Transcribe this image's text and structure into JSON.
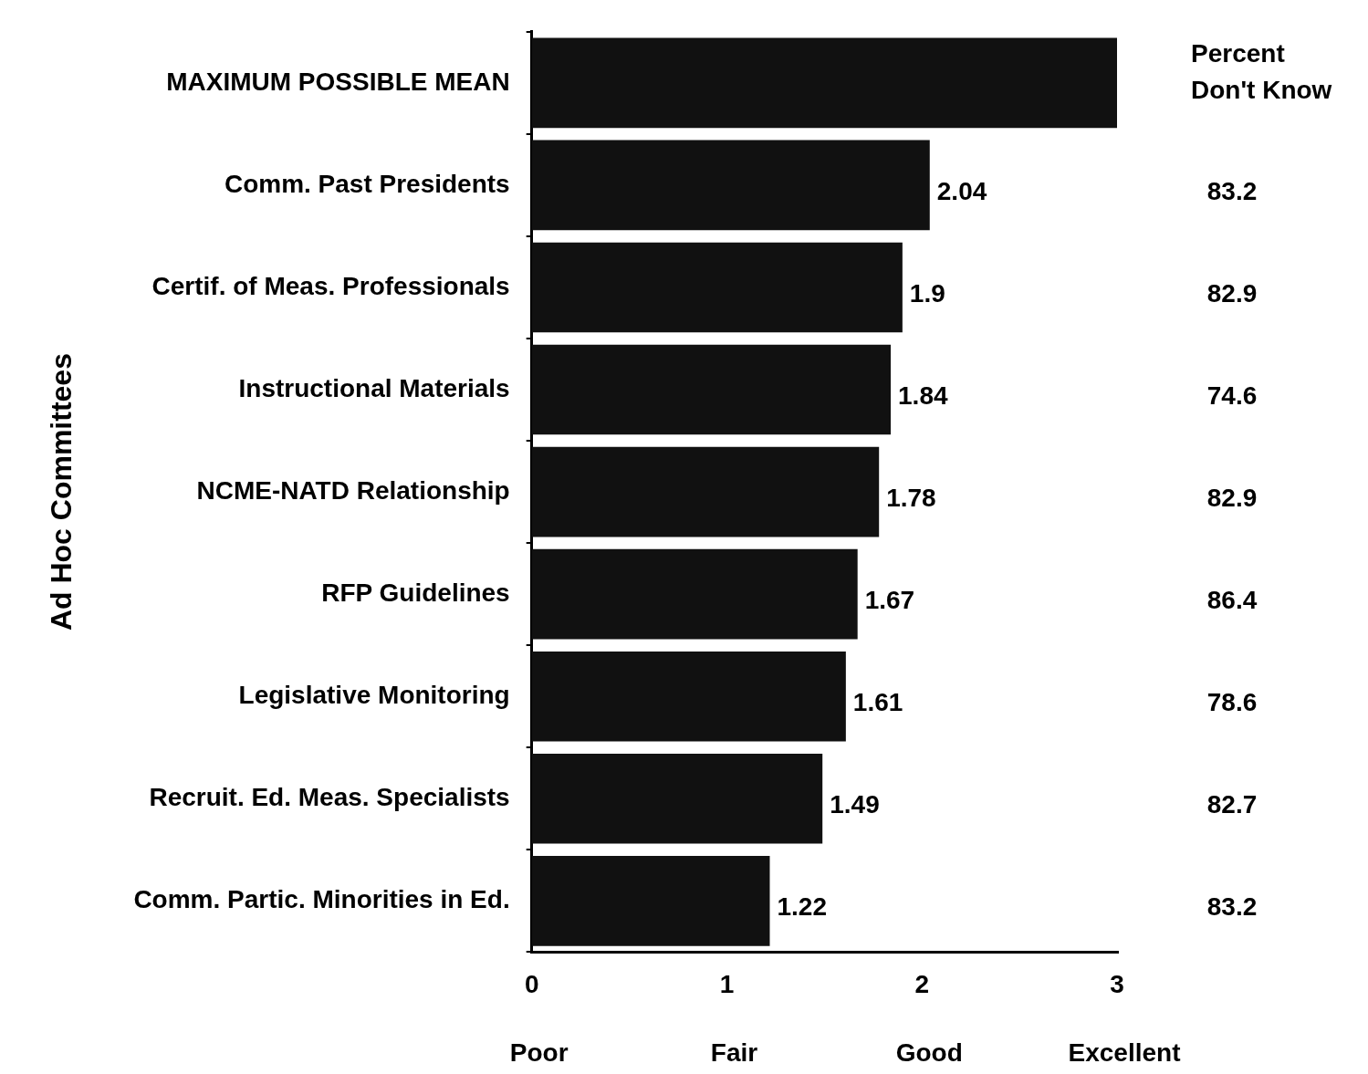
{
  "chart_data": {
    "type": "bar",
    "orientation": "horizontal",
    "ylabel": "Ad Hoc Committees",
    "categories": [
      "MAXIMUM POSSIBLE MEAN",
      "Comm. Past Presidents",
      "Certif. of Meas. Professionals",
      "Instructional Materials",
      "NCME-NATD Relationship",
      "RFP Guidelines",
      "Legislative Monitoring",
      "Recruit. Ed. Meas. Specialists",
      "Comm. Partic. Minorities in Ed."
    ],
    "values": [
      3,
      2.04,
      1.9,
      1.84,
      1.78,
      1.67,
      1.61,
      1.49,
      1.22
    ],
    "value_labels": [
      null,
      "2.04",
      "1.9",
      "1.84",
      "1.78",
      "1.67",
      "1.61",
      "1.49",
      "1.22"
    ],
    "color": "#111111",
    "xlim": [
      0,
      3
    ],
    "xticks": [
      0,
      1,
      2,
      3
    ],
    "grid": false,
    "legend": false,
    "annotations": [
      "Percent\nDon't Know",
      "83.2",
      "82.9",
      "74.6",
      "82.9",
      "86.4",
      "78.6",
      "82.7",
      "83.2",
      "Poor",
      "Fair",
      "Good",
      "Excellent"
    ]
  }
}
